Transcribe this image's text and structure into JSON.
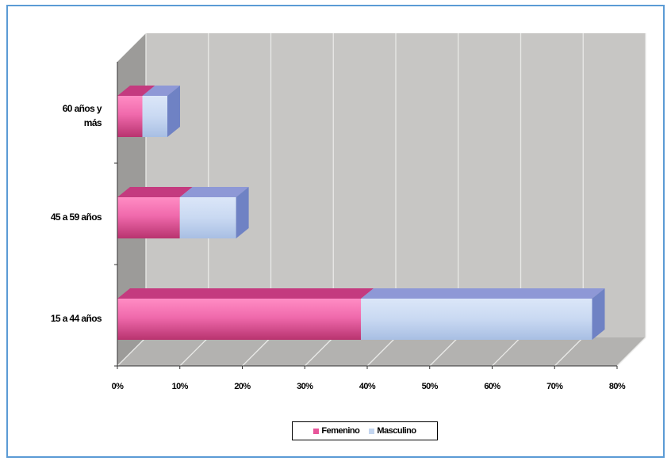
{
  "chart_data": {
    "type": "bar",
    "orientation": "horizontal",
    "stacked": true,
    "style": "3d",
    "categories": [
      "15 a 44 años",
      "45 a 59 años",
      "60 años y más"
    ],
    "series": [
      {
        "name": "Femenino",
        "values": [
          39,
          10,
          4
        ],
        "color": "#e8559a"
      },
      {
        "name": "Masculino",
        "values": [
          37,
          9,
          4
        ],
        "color": "#c3d5ef"
      }
    ],
    "x_ticks": [
      "0%",
      "10%",
      "20%",
      "30%",
      "40%",
      "50%",
      "60%",
      "70%",
      "80%"
    ],
    "xlim": [
      0,
      80
    ],
    "grid": true,
    "legend_position": "bottom",
    "title": "",
    "xlabel": "",
    "ylabel": ""
  }
}
